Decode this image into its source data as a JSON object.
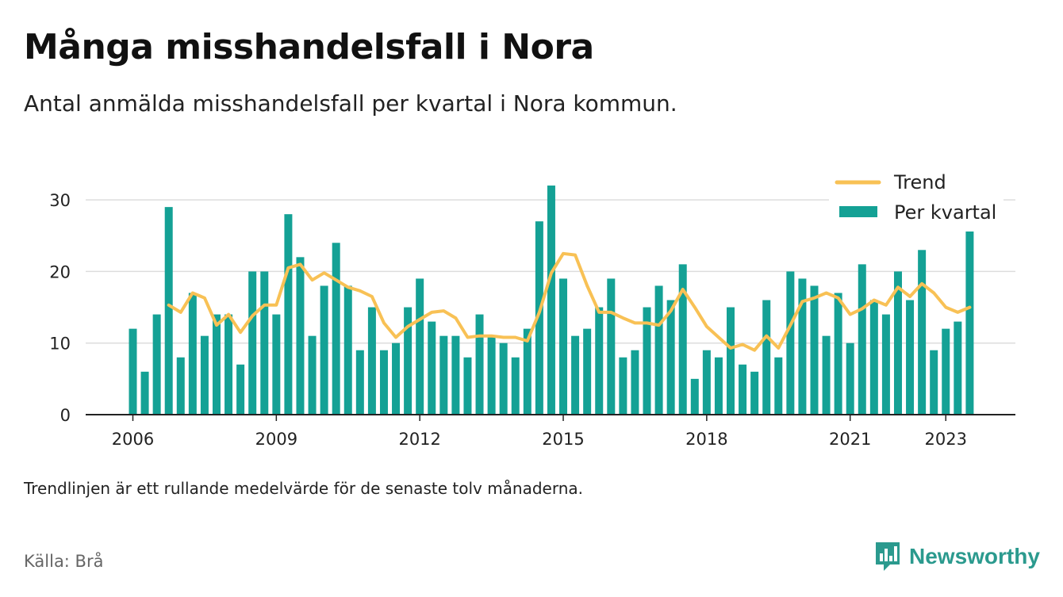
{
  "title": "Många misshandelsfall i Nora",
  "subtitle": "Antal anmälda misshandelsfall per kvartal i Nora kommun.",
  "note": "Trendlinjen är ett rullande medelvärde för de senaste tolv månaderna.",
  "source": "Källa: Brå",
  "brand": {
    "name": "Newsworthy",
    "icon": "newsworthy-logo-icon"
  },
  "colors": {
    "bar": "#14a195",
    "trend": "#f8c155",
    "grid": "#dddddd",
    "axis": "#222222"
  },
  "chart_data": {
    "type": "bar",
    "title": "Många misshandelsfall i Nora",
    "x_start": {
      "year": 2006,
      "quarter": 1
    },
    "x_tick_labels": [
      "2006",
      "2009",
      "2012",
      "2015",
      "2018",
      "2021",
      "2023"
    ],
    "y_ticks": [
      0,
      10,
      20,
      30
    ],
    "ylim": [
      0,
      33
    ],
    "grid": true,
    "legend_position": "top-right",
    "series": [
      {
        "name": "Per kvartal",
        "type": "bar",
        "values": [
          12,
          6,
          14,
          29,
          8,
          17,
          11,
          14,
          14,
          7,
          20,
          20,
          14,
          28,
          22,
          11,
          18,
          24,
          18,
          9,
          15,
          9,
          10,
          15,
          19,
          13,
          11,
          11,
          8,
          14,
          11,
          10,
          8,
          12,
          27,
          32,
          19,
          11,
          12,
          15,
          19,
          8,
          9,
          15,
          18,
          16,
          21,
          5,
          9,
          8,
          15,
          7,
          6,
          16,
          8,
          20,
          19,
          18,
          11,
          17,
          10,
          21,
          16,
          14,
          20,
          16,
          23,
          9,
          12,
          13,
          26
        ]
      },
      {
        "name": "Trend",
        "type": "line",
        "values": [
          null,
          null,
          null,
          15.3,
          14.3,
          17.0,
          16.3,
          12.5,
          14.0,
          11.5,
          13.8,
          15.3,
          15.3,
          20.5,
          21.0,
          18.8,
          19.8,
          18.8,
          17.8,
          17.3,
          16.5,
          12.8,
          10.8,
          12.3,
          13.3,
          14.3,
          14.5,
          13.5,
          10.8,
          11.0,
          11.0,
          10.8,
          10.8,
          10.3,
          14.3,
          19.8,
          22.5,
          22.3,
          18.0,
          14.3,
          14.3,
          13.5,
          12.8,
          12.8,
          12.5,
          14.5,
          17.5,
          15.0,
          12.3,
          10.8,
          9.3,
          9.8,
          9.0,
          11.0,
          9.3,
          12.5,
          15.8,
          16.3,
          17.0,
          16.3,
          14.0,
          14.8,
          16.0,
          15.3,
          17.8,
          16.5,
          18.3,
          17.0,
          15.0,
          14.3,
          15.0
        ]
      }
    ]
  }
}
